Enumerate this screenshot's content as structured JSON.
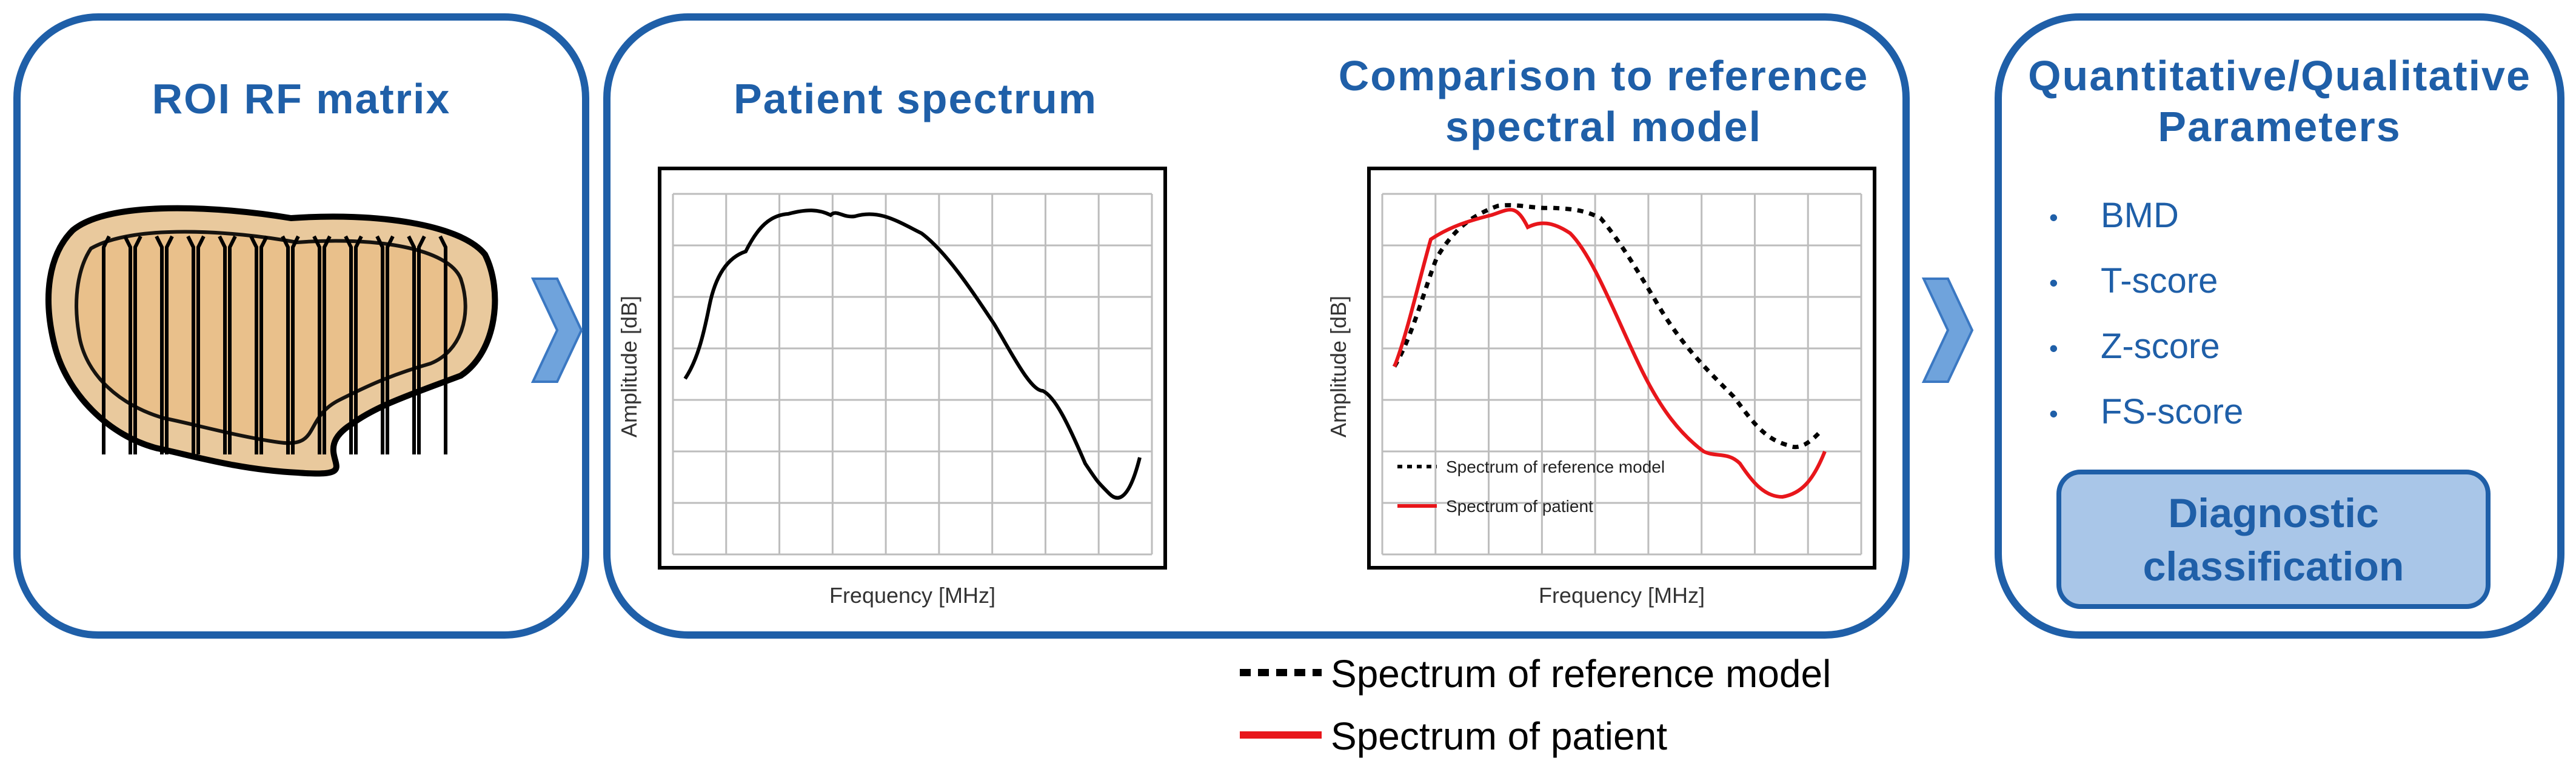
{
  "left_panel": {
    "title": "ROI RF matrix"
  },
  "mid_panel": {
    "patient_title": "Patient spectrum",
    "comparison_title_line1": "Comparison to reference",
    "comparison_title_line2": "spectral model"
  },
  "right_panel": {
    "title_line1": "Quantitative/Qualitative",
    "title_line2": "Parameters",
    "bullet_char": "•",
    "items": [
      "BMD",
      "T-score",
      "Z-score",
      "FS-score"
    ],
    "button_line1": "Diagnostic",
    "button_line2": "classification"
  },
  "charts": {
    "patient": {
      "xlabel": "Frequency [MHz]",
      "ylabel": "Amplitude [dB]"
    },
    "comparison": {
      "xlabel": "Frequency [MHz]",
      "ylabel": "Amplitude [dB]",
      "legend_reference": "Spectrum of reference model",
      "legend_patient": "Spectrum of patient"
    }
  },
  "bottom_legend": {
    "reference": "Spectrum of reference model",
    "patient": "Spectrum of patient"
  },
  "colors": {
    "accent": "#1F5FA8",
    "patient_line": "#E8161B",
    "reference_line": "#000000",
    "button_fill": "#A9C6E8"
  }
}
